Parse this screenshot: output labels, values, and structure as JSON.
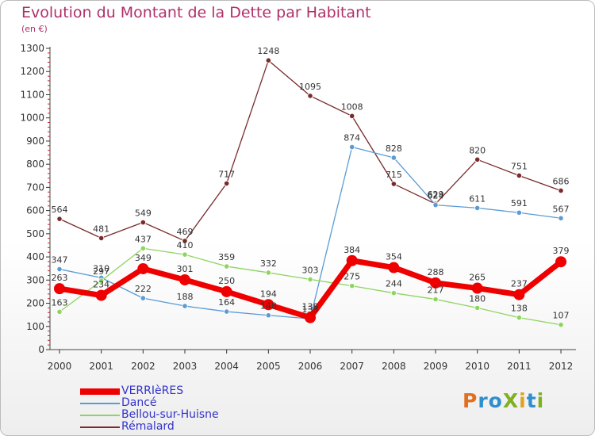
{
  "header": {
    "title": "Evolution du Montant de la Dette par Habitant",
    "subtitle": "(en €)"
  },
  "brand": {
    "logo_text": "ProXiti",
    "logo_letters": [
      {
        "ch": "P",
        "color": "#e07020"
      },
      {
        "ch": "r",
        "color": "#2e8fcf"
      },
      {
        "ch": "o",
        "color": "#2e8fcf"
      },
      {
        "ch": "X",
        "color": "#7fb020"
      },
      {
        "ch": "i",
        "color": "#e0a020"
      },
      {
        "ch": "t",
        "color": "#2e8fcf"
      },
      {
        "ch": "i",
        "color": "#7fb020"
      }
    ]
  },
  "chart_data": {
    "type": "line",
    "title": "Evolution du Montant de la Dette par Habitant",
    "subtitle": "(en €)",
    "xlabel": "",
    "ylabel": "",
    "x": [
      "2000",
      "2001",
      "2002",
      "2003",
      "2004",
      "2005",
      "2006",
      "2007",
      "2008",
      "2009",
      "2010",
      "2011",
      "2012"
    ],
    "ylim": [
      0,
      1300
    ],
    "yticks": [
      0,
      100,
      200,
      300,
      400,
      500,
      600,
      700,
      800,
      900,
      1000,
      1100,
      1200,
      1300
    ],
    "grid": false,
    "legend_position": "bottom-left",
    "series": [
      {
        "name": "VERRIèRES",
        "color": "#ee0000",
        "values": [
          263,
          234,
          349,
          301,
          250,
          194,
          138,
          384,
          354,
          288,
          265,
          237,
          379
        ]
      },
      {
        "name": "Dancé",
        "color": "#5b9bd5",
        "values": [
          347,
          310,
          222,
          188,
          164,
          148,
          133,
          874,
          828,
          624,
          611,
          591,
          567
        ]
      },
      {
        "name": "Bellou-sur-Huisne",
        "color": "#8fd460",
        "values": [
          163,
          297,
          437,
          410,
          359,
          332,
          303,
          275,
          244,
          217,
          180,
          138,
          107
        ]
      },
      {
        "name": "Rémalard",
        "color": "#7a2a2a",
        "values": [
          564,
          481,
          549,
          469,
          717,
          1248,
          1095,
          1008,
          715,
          629,
          820,
          751,
          686
        ]
      }
    ]
  }
}
